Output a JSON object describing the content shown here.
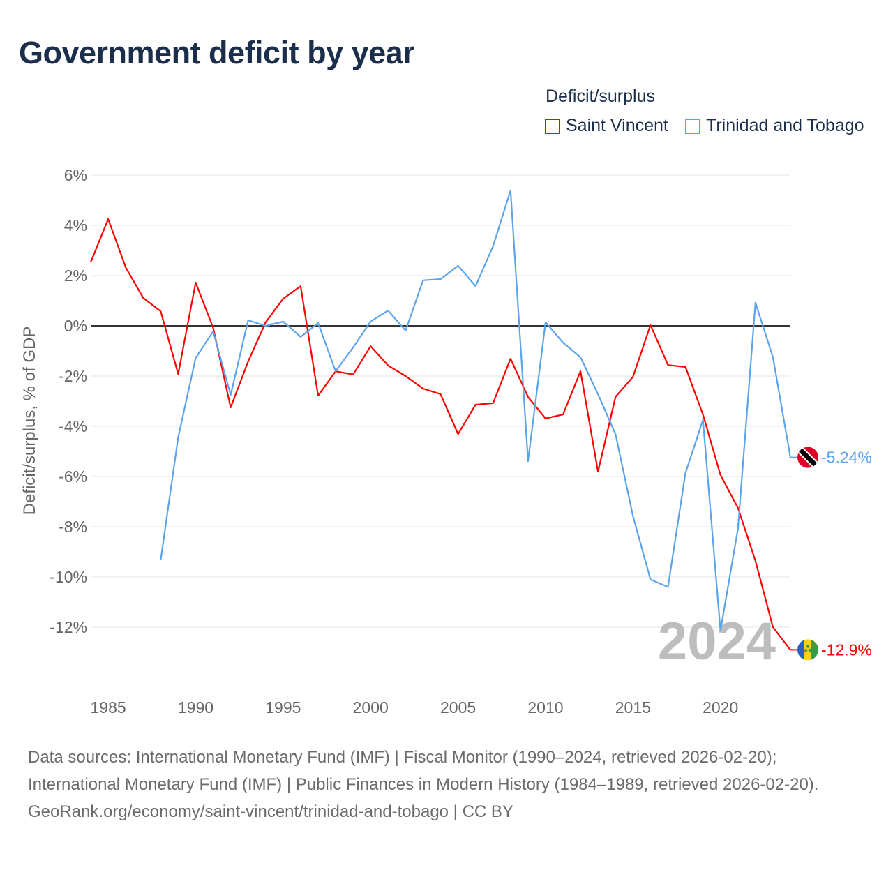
{
  "title": "Government deficit by year",
  "legend": {
    "title": "Deficit/surplus",
    "items": [
      "Saint Vincent",
      "Trinidad and Tobago"
    ]
  },
  "footer": {
    "sources": "Data sources: International Monetary Fund (IMF) | Fiscal Monitor (1990–2024, retrieved 2026-02-20); International Monetary Fund (IMF) | Public Finances in Modern History (1984–1989, retrieved 2026-02-20).",
    "link": "GeoRank.org/economy/saint-vincent/trinidad-and-tobago | CC BY"
  },
  "chart_data": {
    "type": "line",
    "title": "Government deficit by year",
    "xlabel": "",
    "ylabel": "Deficit/surplus, % of GDP",
    "xlim": [
      1984,
      2024
    ],
    "ylim": [
      -14,
      6.5
    ],
    "x_ticks": [
      1985,
      1990,
      1995,
      2000,
      2005,
      2010,
      2015,
      2020
    ],
    "y_ticks": [
      6,
      4,
      2,
      0,
      -2,
      -4,
      -6,
      -8,
      -10,
      -12
    ],
    "y_tick_labels": [
      "6%",
      "4%",
      "2%",
      "0%",
      "-2%",
      "-4%",
      "-6%",
      "-8%",
      "-10%",
      "-12%"
    ],
    "year_watermark": "2024",
    "grid": true,
    "legend_position": "top-right",
    "series": [
      {
        "name": "Saint Vincent",
        "color": "#ff0000",
        "end_label": "-12.9%",
        "flag": "saint-vincent-flag",
        "x": [
          1984,
          1985,
          1986,
          1987,
          1988,
          1989,
          1990,
          1991,
          1992,
          1993,
          1994,
          1995,
          1996,
          1997,
          1998,
          1999,
          2000,
          2001,
          2002,
          2003,
          2004,
          2005,
          2006,
          2007,
          2008,
          2009,
          2010,
          2011,
          2012,
          2013,
          2014,
          2015,
          2016,
          2017,
          2018,
          2019,
          2020,
          2021,
          2022,
          2023,
          2024
        ],
        "values": [
          2.53,
          4.25,
          2.33,
          1.11,
          0.58,
          -1.92,
          1.72,
          -0.08,
          -3.25,
          -1.42,
          0.14,
          1.08,
          1.58,
          -2.78,
          -1.81,
          -1.94,
          -0.81,
          -1.58,
          -2.0,
          -2.5,
          -2.72,
          -4.31,
          -3.14,
          -3.08,
          -1.31,
          -2.83,
          -3.69,
          -3.53,
          -1.81,
          -5.81,
          -2.83,
          -2.03,
          0.03,
          -1.56,
          -1.64,
          -3.53,
          -5.94,
          -7.25,
          -9.36,
          -12.0,
          -12.9
        ]
      },
      {
        "name": "Trinidad and Tobago",
        "color": "#5ba4eb",
        "end_label": "-5.24%",
        "flag": "trinidad-flag",
        "x": [
          1988,
          1989,
          1990,
          1991,
          1992,
          1993,
          1994,
          1995,
          1996,
          1997,
          1998,
          1999,
          2000,
          2001,
          2002,
          2003,
          2004,
          2005,
          2006,
          2007,
          2008,
          2009,
          2010,
          2011,
          2012,
          2013,
          2014,
          2015,
          2016,
          2017,
          2018,
          2019,
          2020,
          2021,
          2022,
          2023,
          2024
        ],
        "values": [
          -9.33,
          -4.44,
          -1.28,
          -0.22,
          -2.75,
          0.22,
          0.0,
          0.17,
          -0.44,
          0.11,
          -1.81,
          -0.86,
          0.17,
          0.61,
          -0.19,
          1.81,
          1.86,
          2.39,
          1.58,
          3.17,
          5.39,
          -5.39,
          0.14,
          -0.67,
          -1.25,
          -2.72,
          -4.31,
          -7.58,
          -10.1,
          -10.4,
          -5.86,
          -3.75,
          -12.14,
          -8.08,
          0.92,
          -1.25,
          -5.24
        ]
      }
    ]
  }
}
